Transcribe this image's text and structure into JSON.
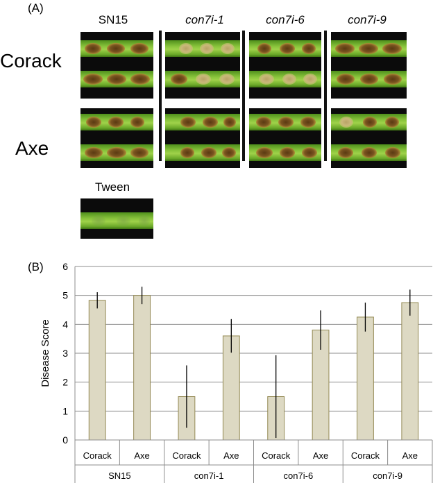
{
  "panel_a": {
    "label": "(A)",
    "columns": [
      "SN15",
      "con7i-1",
      "con7i-6",
      "con7i-9"
    ],
    "rows": [
      "Corack",
      "Axe"
    ],
    "control_label": "Tween"
  },
  "panel_b": {
    "label": "(B)"
  },
  "chart_data": {
    "type": "bar",
    "ylabel": "Disease Score",
    "ylim": [
      0,
      6
    ],
    "yticks": [
      0,
      1,
      2,
      3,
      4,
      5,
      6
    ],
    "grid": true,
    "groups": [
      "SN15",
      "con7i-1",
      "con7i-6",
      "con7i-9"
    ],
    "subcategories": [
      "Corack",
      "Axe"
    ],
    "values": [
      4.83,
      5.0,
      1.5,
      3.6,
      1.5,
      3.8,
      4.25,
      4.75
    ],
    "errors": [
      0.28,
      0.3,
      1.08,
      0.58,
      1.43,
      0.68,
      0.5,
      0.45
    ],
    "bar_color": "#ddd9c3",
    "bar_edge": "#938953"
  }
}
